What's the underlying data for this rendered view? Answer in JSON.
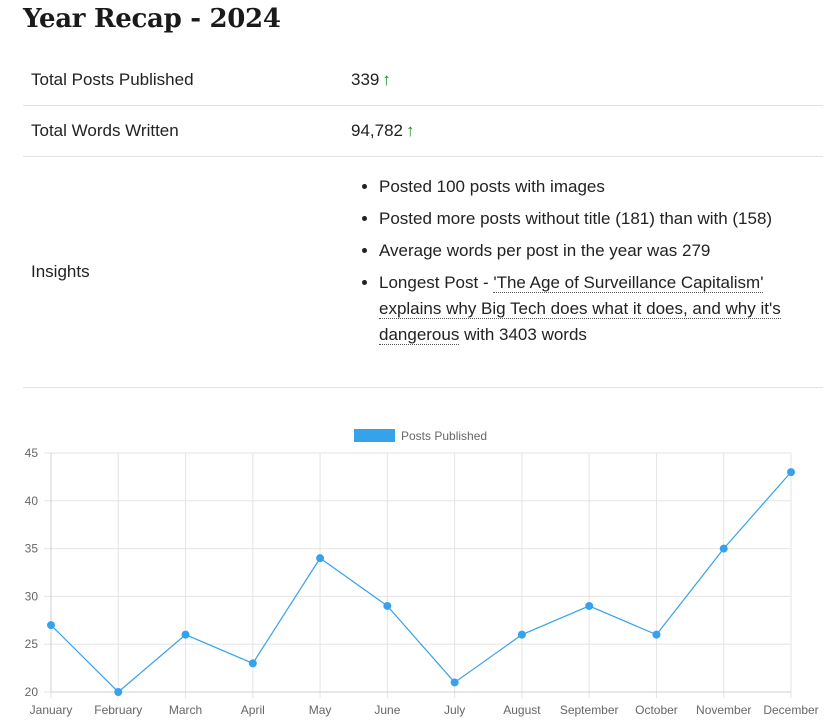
{
  "page": {
    "title": "Year Recap - 2024"
  },
  "stats": [
    {
      "label": "Total Posts Published",
      "value": "339",
      "trend": "↑"
    },
    {
      "label": "Total Words Written",
      "value": "94,782",
      "trend": "↑"
    }
  ],
  "insights": {
    "label": "Insights",
    "items": [
      "Posted 100 posts with images",
      "Posted more posts without title (181) than with (158)",
      "Average words per post in the year was 279"
    ],
    "longest": {
      "prefix": "Longest Post - ",
      "link_text": "'The Age of Surveillance Capitalism' explains why Big Tech does what it does, and why it's dangerous",
      "suffix": " with 3403 words"
    }
  },
  "colors": {
    "series": "#36a2eb",
    "trend_up": "#1a8a1a",
    "grid": "#e5e5e5",
    "axis_text": "#666666"
  },
  "chart_data": {
    "type": "line",
    "categories": [
      "January",
      "February",
      "March",
      "April",
      "May",
      "June",
      "July",
      "August",
      "September",
      "October",
      "November",
      "December"
    ],
    "series": [
      {
        "name": "Posts Published",
        "values": [
          27,
          20,
          26,
          23,
          34,
          29,
          21,
          26,
          29,
          26,
          35,
          43
        ]
      }
    ],
    "ylim": [
      20,
      45
    ],
    "yticks": [
      20,
      25,
      30,
      35,
      40,
      45
    ],
    "grid": true,
    "legend": "top"
  }
}
